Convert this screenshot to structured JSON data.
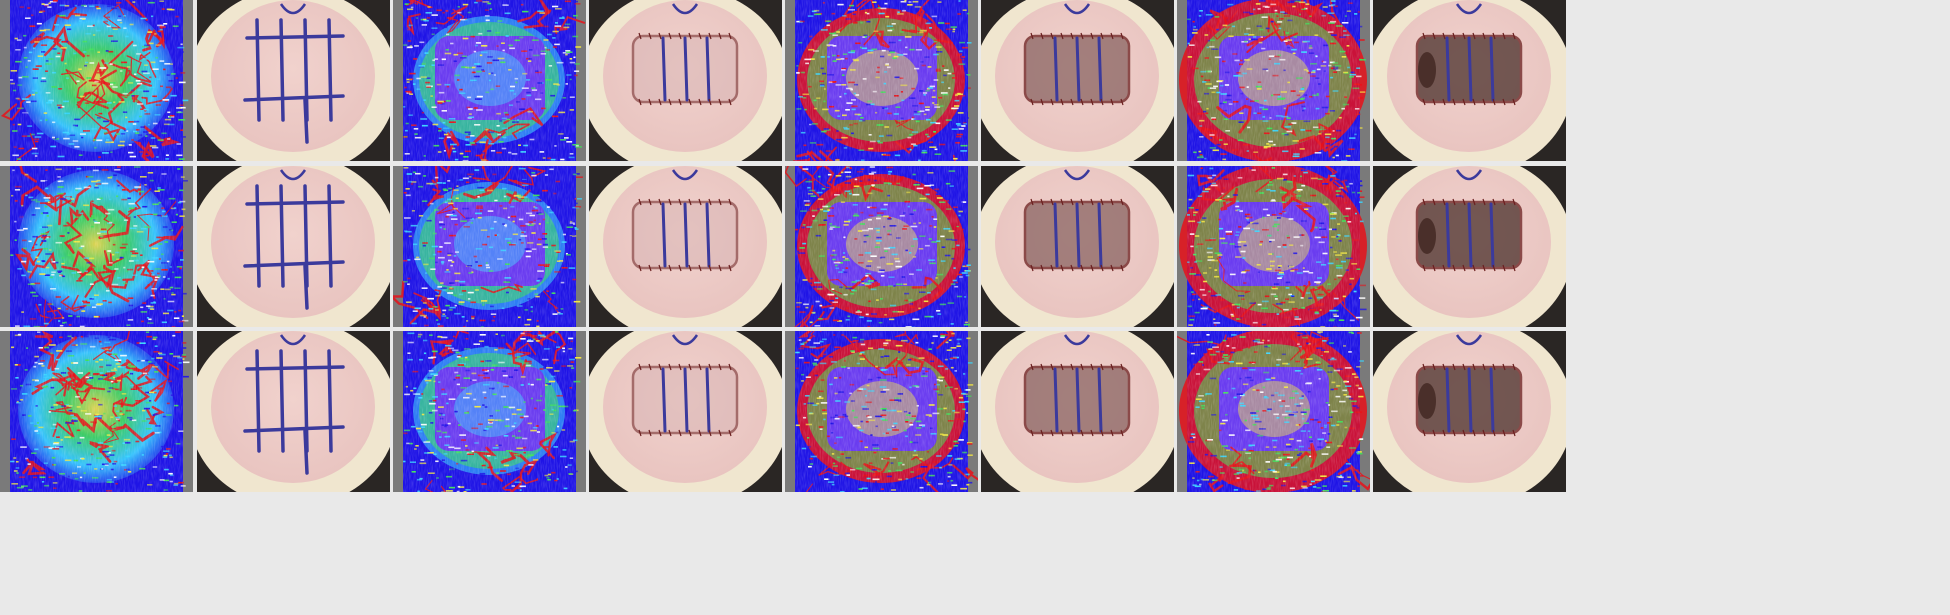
{
  "figure": {
    "rows": 3,
    "columns": 8,
    "panels": [
      {
        "row": 1,
        "col": 1,
        "kind": "perfusion-map",
        "pattern": "vessel-network"
      },
      {
        "row": 1,
        "col": 2,
        "kind": "skin-photo",
        "pattern": "grid-marked"
      },
      {
        "row": 1,
        "col": 3,
        "kind": "perfusion-map",
        "pattern": "flap-low"
      },
      {
        "row": 1,
        "col": 4,
        "kind": "skin-photo",
        "pattern": "sutured-flap"
      },
      {
        "row": 1,
        "col": 5,
        "kind": "perfusion-map",
        "pattern": "flap-ring"
      },
      {
        "row": 1,
        "col": 6,
        "kind": "skin-photo",
        "pattern": "darkened-flap"
      },
      {
        "row": 1,
        "col": 7,
        "kind": "perfusion-map",
        "pattern": "flap-ring-strong"
      },
      {
        "row": 1,
        "col": 8,
        "kind": "skin-photo",
        "pattern": "necrotic-flap"
      },
      {
        "row": 2,
        "col": 1,
        "kind": "perfusion-map",
        "pattern": "vessel-network"
      },
      {
        "row": 2,
        "col": 2,
        "kind": "skin-photo",
        "pattern": "grid-marked"
      },
      {
        "row": 2,
        "col": 3,
        "kind": "perfusion-map",
        "pattern": "flap-low"
      },
      {
        "row": 2,
        "col": 4,
        "kind": "skin-photo",
        "pattern": "sutured-flap"
      },
      {
        "row": 2,
        "col": 5,
        "kind": "perfusion-map",
        "pattern": "flap-ring"
      },
      {
        "row": 2,
        "col": 6,
        "kind": "skin-photo",
        "pattern": "darkened-flap"
      },
      {
        "row": 2,
        "col": 7,
        "kind": "perfusion-map",
        "pattern": "flap-ring-strong"
      },
      {
        "row": 2,
        "col": 8,
        "kind": "skin-photo",
        "pattern": "necrotic-flap"
      },
      {
        "row": 3,
        "col": 1,
        "kind": "perfusion-map",
        "pattern": "vessel-network"
      },
      {
        "row": 3,
        "col": 2,
        "kind": "skin-photo",
        "pattern": "grid-marked"
      },
      {
        "row": 3,
        "col": 3,
        "kind": "perfusion-map",
        "pattern": "flap-low"
      },
      {
        "row": 3,
        "col": 4,
        "kind": "skin-photo",
        "pattern": "sutured-flap"
      },
      {
        "row": 3,
        "col": 5,
        "kind": "perfusion-map",
        "pattern": "flap-ring"
      },
      {
        "row": 3,
        "col": 6,
        "kind": "skin-photo",
        "pattern": "darkened-flap"
      },
      {
        "row": 3,
        "col": 7,
        "kind": "perfusion-map",
        "pattern": "flap-ring-strong"
      },
      {
        "row": 3,
        "col": 8,
        "kind": "skin-photo",
        "pattern": "necrotic-flap"
      }
    ]
  },
  "colors": {
    "divider": "#e9e9e9",
    "perfusion_low": "#1f14e6",
    "perfusion_mid": "#39d6ff",
    "perfusion_green": "#40e05a",
    "perfusion_yellow": "#f4e842",
    "perfusion_high": "#e8121a",
    "fur": "#f0e6cf",
    "skin": "#e8c3bf",
    "marker_ink": "#3b3a9c",
    "suture_line": "#6b2020",
    "necrosis": "#4a2f2a"
  }
}
